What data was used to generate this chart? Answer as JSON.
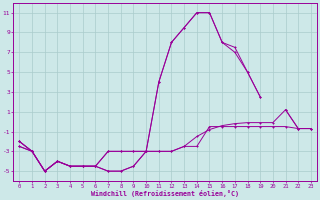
{
  "x_values": [
    0,
    1,
    2,
    3,
    4,
    5,
    6,
    7,
    8,
    9,
    10,
    11,
    12,
    13,
    14,
    15,
    16,
    17,
    18,
    19,
    20,
    21,
    22,
    23
  ],
  "lines": [
    [
      -2,
      -3,
      null,
      null,
      null,
      null,
      null,
      null,
      null,
      null,
      null,
      null,
      null,
      null,
      null,
      null,
      null,
      null,
      null,
      null,
      null,
      null,
      null,
      null
    ],
    [
      -2,
      -3,
      -5,
      -4,
      -4.5,
      -4.5,
      -4.5,
      -5,
      -5,
      -4.5,
      -3,
      -3,
      -3,
      -2.5,
      -2.5,
      -0.5,
      -0.5,
      -0.5,
      -0.5,
      -0.5,
      -0.5,
      -0.5,
      -0.7,
      -0.7
    ],
    [
      -2,
      -3,
      -5,
      -4,
      -4.5,
      -4.5,
      -4.5,
      -5,
      -5,
      -4.5,
      -3,
      -3,
      -3,
      -2.5,
      -1.5,
      -0.8,
      -0.4,
      -0.2,
      -0.1,
      -0.1,
      -0.1,
      1.2,
      -0.7,
      -0.7
    ],
    [
      -2.5,
      -3,
      -5,
      -4,
      -4.5,
      -4.5,
      -4.5,
      -3,
      -3,
      -3,
      -3,
      4,
      8,
      9.5,
      11,
      11,
      8,
      7.5,
      5,
      2.5,
      null,
      null,
      null,
      null
    ],
    [
      -2.5,
      -3,
      -5,
      -4,
      -4.5,
      -4.5,
      -4.5,
      -3,
      -3,
      -3,
      -3,
      4,
      8,
      9.5,
      11,
      11,
      8,
      7,
      5,
      2.5,
      null,
      1.2,
      -0.7,
      -0.7
    ]
  ],
  "color": "#990099",
  "bg_color": "#cde8e8",
  "grid_color": "#aacccc",
  "ylim": [
    -6,
    12
  ],
  "xlim": [
    0,
    23
  ],
  "yticks": [
    -5,
    -3,
    -1,
    1,
    3,
    5,
    7,
    9,
    11
  ],
  "xticks": [
    0,
    1,
    2,
    3,
    4,
    5,
    6,
    7,
    8,
    9,
    10,
    11,
    12,
    13,
    14,
    15,
    16,
    17,
    18,
    19,
    20,
    21,
    22,
    23
  ],
  "xlabel": "Windchill (Refroidissement éolien,°C)"
}
